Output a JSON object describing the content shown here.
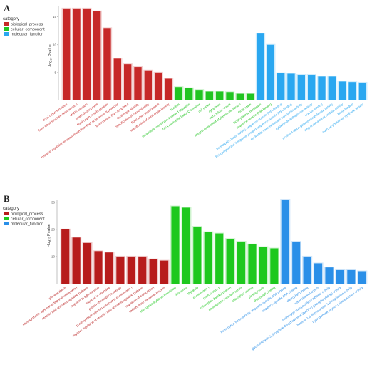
{
  "chart_data": [
    {
      "type": "bar",
      "panel_label": "A",
      "legend_title": "category",
      "legend": [
        {
          "name": "biological_process",
          "color": "#c62828"
        },
        {
          "name": "cellular_component",
          "color": "#21c421"
        },
        {
          "name": "molecular_function",
          "color": "#2aa7f0"
        }
      ],
      "ylabel": "-log₁₀ Pvalue",
      "ylim": [
        0,
        17
      ],
      "yticks": [
        5,
        10,
        15
      ],
      "grid": false,
      "categories": [
        "floral organ formation",
        "floral whorl structure determination",
        "MAPK cascade",
        "flower development",
        "floral organ morphogenesis",
        "negative regulation of transcription from RNA polymerase II promoter",
        "transcription, DNA-templated",
        "floral organ identity",
        "specification of carpel identity",
        "floral whorl development",
        "specification of floral organ identity",
        "nucleus",
        "intracellular membrane-bounded organelle",
        "DNA replication factor C complex",
        "cell cortex",
        "cytoplasm",
        "extracellular matrix",
        "integral component of plasma membrane",
        "Golgi stack",
        "Golgi-plasma membrane",
        "sequence-specific DNA binding",
        "transcription factor activity, sequence-specific DNA binding",
        "RNA polymerase II regulatory region sequence-specific DNA binding",
        "nucleotide transmembrane transporter activity",
        "cytokinin dehydrogenase activity",
        "iron ion binding",
        "inositol 3-alpha-galactosyltransferase activity",
        "long-chain-alcohol oxidase activity",
        "heme binding",
        "sucrose-phosphate synthase activity"
      ],
      "values": [
        16.5,
        16.5,
        16.5,
        16,
        13,
        7.5,
        6.5,
        6,
        5.4,
        5,
        3.9,
        2.4,
        2.2,
        1.9,
        1.6,
        1.6,
        1.5,
        1.2,
        1.2,
        12,
        10,
        4.9,
        4.8,
        4.6,
        4.6,
        4.3,
        4.3,
        3.4,
        3.3,
        3.2
      ],
      "groups": [
        "bp",
        "bp",
        "bp",
        "bp",
        "bp",
        "bp",
        "bp",
        "bp",
        "bp",
        "bp",
        "bp",
        "cc",
        "cc",
        "cc",
        "cc",
        "cc",
        "cc",
        "cc",
        "cc",
        "mf",
        "mf",
        "mf",
        "mf",
        "mf",
        "mf",
        "mf",
        "mf",
        "mf",
        "mf",
        "mf"
      ],
      "label_colors": [
        "bp",
        "bp",
        "bp",
        "bp",
        "bp",
        "bp",
        "bp",
        "bp",
        "bp",
        "bp",
        "bp",
        "cc",
        "cc",
        "cc",
        "cc",
        "cc",
        "cc",
        "cc",
        "cc",
        "cc",
        "cc",
        "mf",
        "mf",
        "mf",
        "mf",
        "mf",
        "mf",
        "mf",
        "mf",
        "mf"
      ]
    },
    {
      "type": "bar",
      "panel_label": "B",
      "legend_title": "category",
      "legend": [
        {
          "name": "biological_process",
          "color": "#b71c1c"
        },
        {
          "name": "cellular_component",
          "color": "#1ec81e"
        },
        {
          "name": "molecular_function",
          "color": "#2a8fe8"
        }
      ],
      "ylabel": "-log₁₀ Pvalue",
      "ylim": [
        0,
        31
      ],
      "yticks": [
        10,
        20,
        30
      ],
      "grid": false,
      "categories": [
        "photosynthesis",
        "photosynthesis, light harvesting in photosystem I",
        "abscisic acid-activated signaling pathway",
        "response to light stimulus",
        "response to wounding",
        "protein-chromophore linkage",
        "photosynthetic electron transport in photosystem I",
        "negative regulation of abscisic acid-activated signaling pathway",
        "regulation of transcription",
        "carbohydrate metabolic process",
        "chloroplast thylakoid membrane",
        "chloroplast",
        "thylakoid",
        "photosystem I",
        "photosystem II",
        "chloroplast thylakoid lumen",
        "photosystem I reaction center",
        "chloroplast stroma",
        "plastoglobule",
        "chlorophyll binding",
        "transcription factor activity, sequence-specific DNA binding",
        "sequence-specific DNA binding",
        "chlorophyll binding",
        "water channel activity",
        "serine-type endopeptidase inhibitor activity",
        "glyceraldehyde-3-phosphate dehydrogenase (NADP+) (phosphorylating) activity",
        "fructose 1,6-bisphosphate 1-phosphatase activity",
        "hydroquinone:oxygen oxidoreductase activity"
      ],
      "values": [
        20,
        17,
        15,
        12,
        11.5,
        10,
        10,
        10,
        9,
        8.5,
        28.5,
        28,
        21,
        19,
        18.5,
        16.5,
        15.5,
        14.5,
        13.5,
        13,
        31,
        15.5,
        10,
        7.5,
        6,
        5,
        5,
        4.6
      ],
      "groups": [
        "bp",
        "bp",
        "bp",
        "bp",
        "bp",
        "bp",
        "bp",
        "bp",
        "bp",
        "bp",
        "cc",
        "cc",
        "cc",
        "cc",
        "cc",
        "cc",
        "cc",
        "cc",
        "cc",
        "cc",
        "mf",
        "mf",
        "mf",
        "mf",
        "mf",
        "mf",
        "mf",
        "mf"
      ],
      "label_colors": [
        "bp",
        "bp",
        "bp",
        "bp",
        "bp",
        "bp",
        "bp",
        "bp",
        "bp",
        "bp",
        "cc",
        "cc",
        "cc",
        "cc",
        "cc",
        "cc",
        "cc",
        "cc",
        "cc",
        "cc",
        "mf",
        "mf",
        "mf",
        "mf",
        "mf",
        "mf",
        "mf",
        "mf"
      ]
    }
  ]
}
